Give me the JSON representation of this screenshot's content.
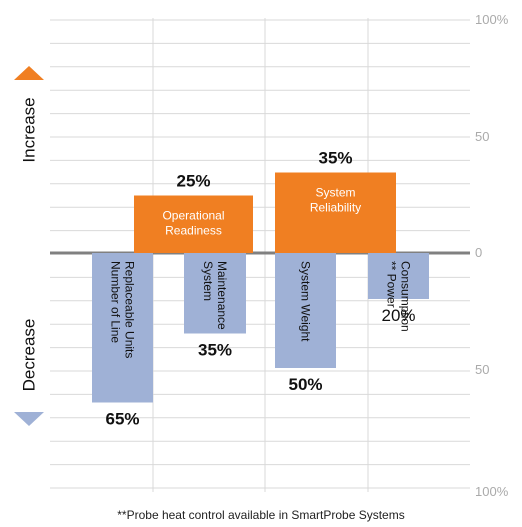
{
  "chart_data": {
    "type": "bar",
    "ylim_up": [
      0,
      100
    ],
    "ylim_down": [
      0,
      100
    ],
    "y_tick_labels": [
      "100%",
      "50",
      "0",
      "50",
      "100%"
    ],
    "direction_labels": {
      "increase": "Increase",
      "decrease": "Decrease"
    },
    "increase_bars": [
      {
        "label": [
          "Operational",
          "Readiness"
        ],
        "value": 25,
        "value_label": "25%"
      },
      {
        "label": [
          "System",
          "Reliability"
        ],
        "value": 35,
        "value_label": "35%"
      }
    ],
    "decrease_bars": [
      {
        "label": [
          "Number of Line",
          "Replaceable Units"
        ],
        "value": 65,
        "value_label": "65%"
      },
      {
        "label": [
          "System",
          "Maintenance"
        ],
        "value": 35,
        "value_label": "35%"
      },
      {
        "label": [
          "System Weight"
        ],
        "value": 50,
        "value_label": "50%"
      },
      {
        "label": [
          "** Power",
          "Consumption"
        ],
        "value": 20,
        "value_label": "20%",
        "value_bold": false
      }
    ],
    "colors": {
      "increase": "#f07f22",
      "decrease": "#9fb1d6",
      "baseline": "#808080",
      "grid": "#d9d9d9"
    }
  },
  "footnote": "**Probe heat control available in SmartProbe Systems"
}
